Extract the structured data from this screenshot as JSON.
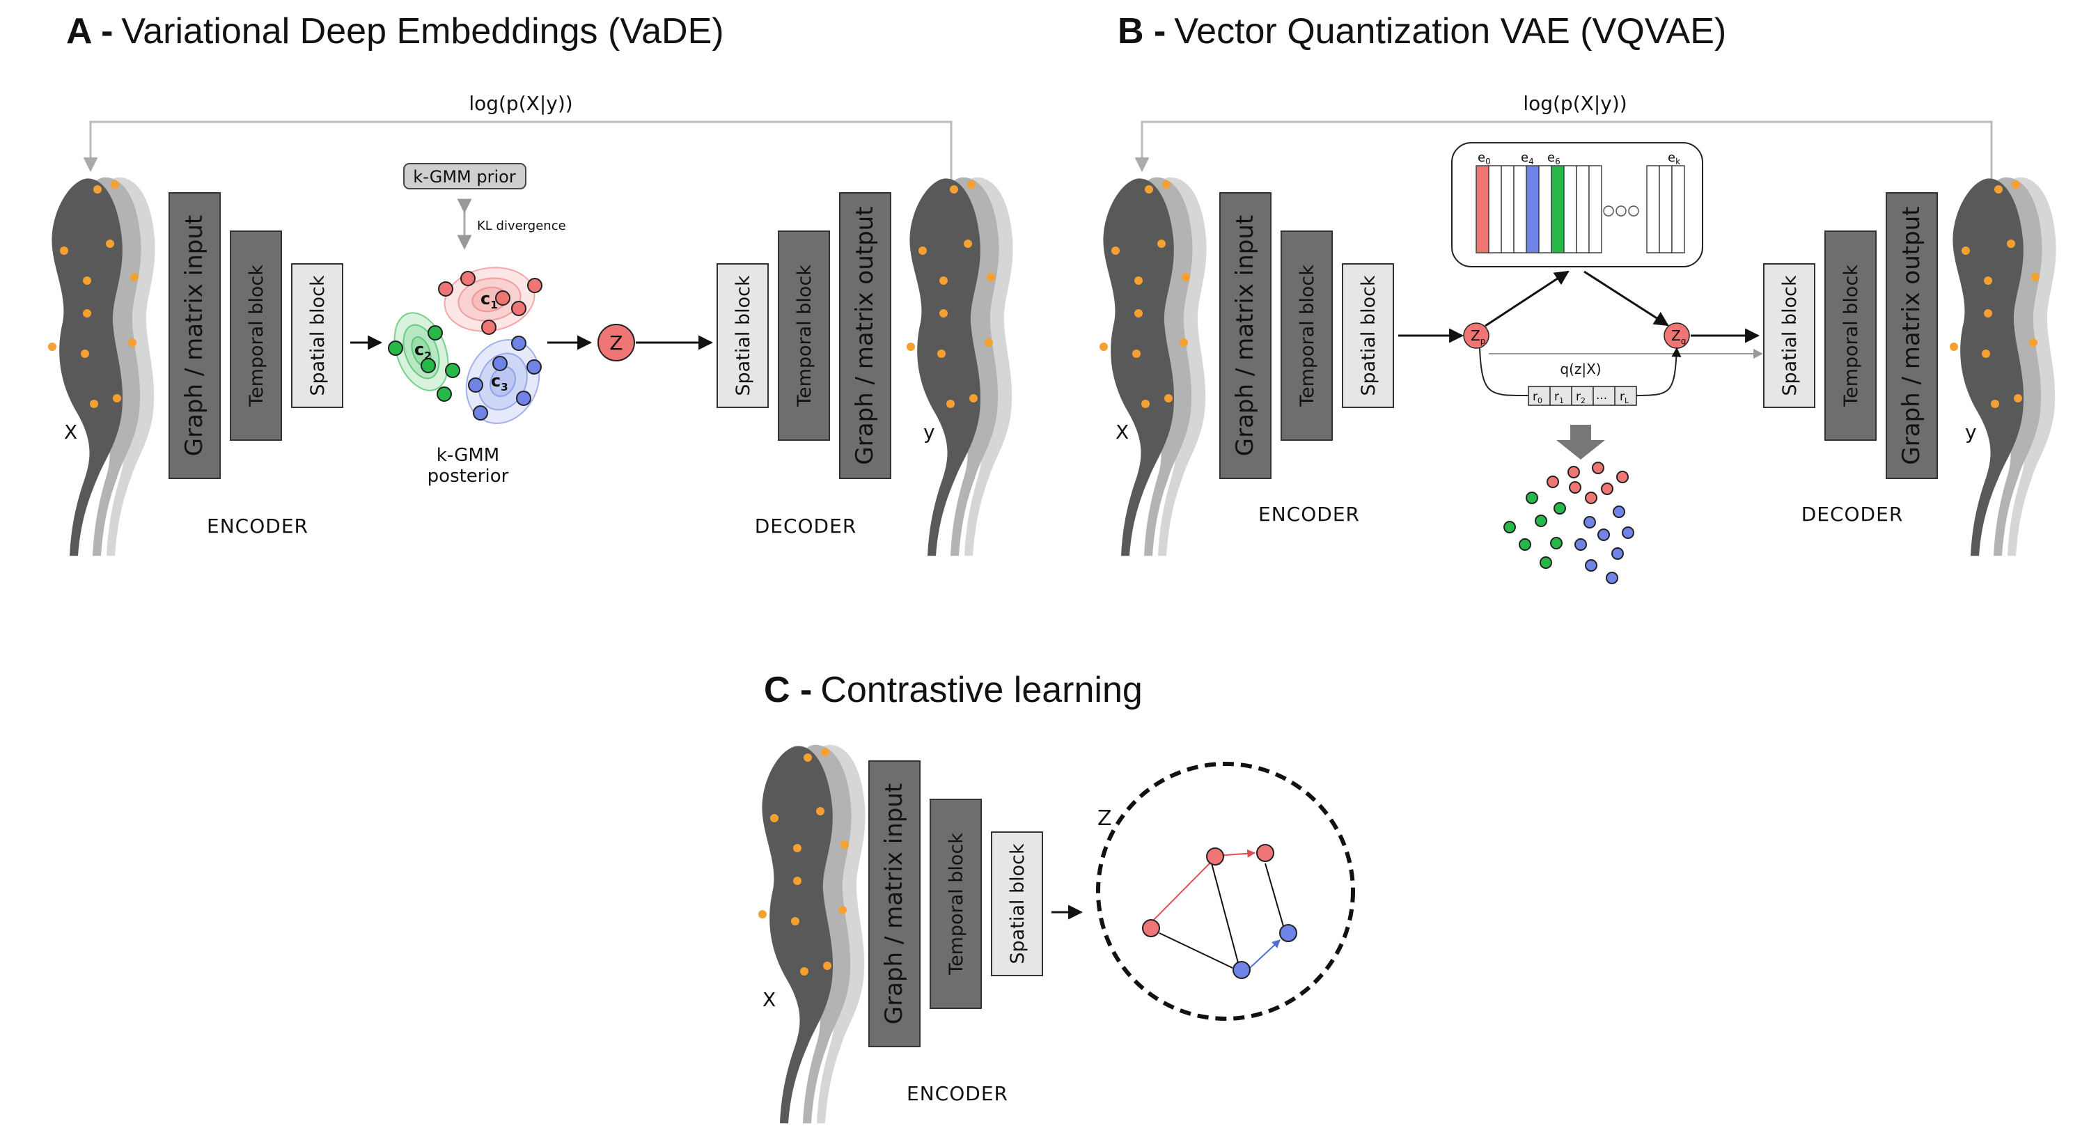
{
  "panels": {
    "a": {
      "letter": "A -",
      "title": "Variational Deep Embeddings (VaDE)",
      "reconstruction": "log(p(X|y))",
      "prior": "k-GMM prior",
      "kl": "KL divergence",
      "clusters": [
        "c",
        "c",
        "c"
      ],
      "cluster_subs": [
        "1",
        "2",
        "3"
      ],
      "posterior_line1": "k-GMM",
      "posterior_line2": "posterior",
      "z": "Z",
      "x": "X",
      "y": "y",
      "encoder": "ENCODER",
      "decoder": "DECODER"
    },
    "b": {
      "letter": "B -",
      "title": "Vector Quantization VAE (VQVAE)",
      "reconstruction": "log(p(X|y))",
      "codebook": [
        "e",
        "e",
        "e",
        "e"
      ],
      "codebook_subs": [
        "0",
        "4",
        "6",
        "k"
      ],
      "zp": "Z",
      "zp_sub": "p",
      "zq": "Z",
      "zq_sub": "q",
      "qz": "q(z|X)",
      "r_main": [
        "r",
        "r",
        "r",
        "...",
        "r"
      ],
      "r_subs": [
        "0",
        "1",
        "2",
        "",
        "L"
      ],
      "x": "X",
      "y": "y",
      "encoder": "ENCODER",
      "decoder": "DECODER"
    },
    "c": {
      "letter": "C -",
      "title": "Contrastive learning",
      "z": "Z",
      "x": "X",
      "encoder": "ENCODER"
    }
  },
  "blocks": {
    "graph_input": "Graph / matrix input",
    "graph_output": "Graph / matrix output",
    "temporal": "Temporal block",
    "spatial": "Spatial block"
  },
  "colors": {
    "red": "#f07575",
    "green": "#27b84a",
    "blue": "#6f84e6",
    "orange": "#f5a030",
    "mouse": "#595959",
    "block_dark": "#6e6e6e",
    "block_light": "#e6e6e6"
  }
}
